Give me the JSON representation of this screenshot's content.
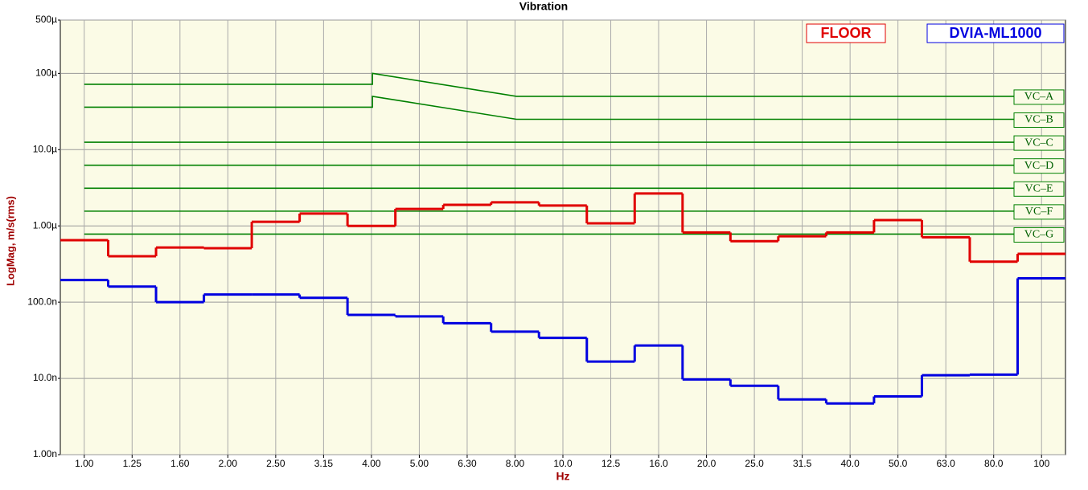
{
  "chart_data": {
    "type": "step",
    "title": "Vibration",
    "x_label": "Hz",
    "y_label": "LogMag, m/s(rms)",
    "categories": [
      "1.00",
      "1.25",
      "1.60",
      "2.00",
      "2.50",
      "3.15",
      "4.00",
      "5.00",
      "6.30",
      "8.00",
      "10.0",
      "12.5",
      "16.0",
      "20.0",
      "25.0",
      "31.5",
      "40.0",
      "50.0",
      "63.0",
      "80.0",
      "100"
    ],
    "series": [
      {
        "name": "FLOOR",
        "color": "#e00000",
        "values": [
          6.5e-07,
          4e-07,
          5.2e-07,
          5.1e-07,
          1.13e-06,
          1.45e-06,
          1e-06,
          1.67e-06,
          1.89e-06,
          2.04e-06,
          1.85e-06,
          1.08e-06,
          2.66e-06,
          8.2e-07,
          6.3e-07,
          7.3e-07,
          8.2e-07,
          1.19e-06,
          7.1e-07,
          3.4e-07,
          4.3e-07
        ]
      },
      {
        "name": "DVIA-ML1000",
        "color": "#0000e0",
        "values": [
          1.95e-07,
          1.6e-07,
          1e-07,
          1.26e-07,
          1.26e-07,
          1.14e-07,
          6.8e-08,
          6.5e-08,
          5.3e-08,
          4.1e-08,
          3.4e-08,
          1.66e-08,
          2.7e-08,
          9.7e-09,
          8e-09,
          5.3e-09,
          4.7e-09,
          5.8e-09,
          1.1e-08,
          1.12e-08,
          2.05e-07
        ]
      }
    ],
    "criteria": [
      {
        "name": "VC–A",
        "color": "#008000",
        "x": [
          1,
          4,
          4,
          8,
          100
        ],
        "values": [
          7.2e-05,
          7.2e-05,
          0.0001,
          5e-05,
          5e-05
        ]
      },
      {
        "name": "VC–B",
        "color": "#008000",
        "x": [
          1,
          4,
          4,
          8,
          100
        ],
        "values": [
          3.6e-05,
          3.6e-05,
          5e-05,
          2.5e-05,
          2.5e-05
        ]
      },
      {
        "name": "VC–C",
        "color": "#008000",
        "x": [
          1,
          100
        ],
        "values": [
          1.25e-05,
          1.25e-05
        ]
      },
      {
        "name": "VC–D",
        "color": "#008000",
        "x": [
          1,
          100
        ],
        "values": [
          6.25e-06,
          6.25e-06
        ]
      },
      {
        "name": "VC–E",
        "color": "#008000",
        "x": [
          1,
          100
        ],
        "values": [
          3.12e-06,
          3.12e-06
        ]
      },
      {
        "name": "VC–F",
        "color": "#008000",
        "x": [
          1,
          100
        ],
        "values": [
          1.56e-06,
          1.56e-06
        ]
      },
      {
        "name": "VC–G",
        "color": "#008000",
        "x": [
          1,
          100
        ],
        "values": [
          7.8e-07,
          7.8e-07
        ]
      }
    ],
    "y_log": true,
    "ylim": [
      1e-09,
      0.0005
    ],
    "yticks": [
      {
        "value": 1e-09,
        "label": "1.00n"
      },
      {
        "value": 1e-08,
        "label": "10.0n"
      },
      {
        "value": 1e-07,
        "label": "100.0n"
      },
      {
        "value": 1e-06,
        "label": "1.00µ"
      },
      {
        "value": 1e-05,
        "label": "10.0µ"
      },
      {
        "value": 0.0001,
        "label": "100µ"
      },
      {
        "value": 0.0005,
        "label": "500µ"
      }
    ],
    "grid": true
  }
}
